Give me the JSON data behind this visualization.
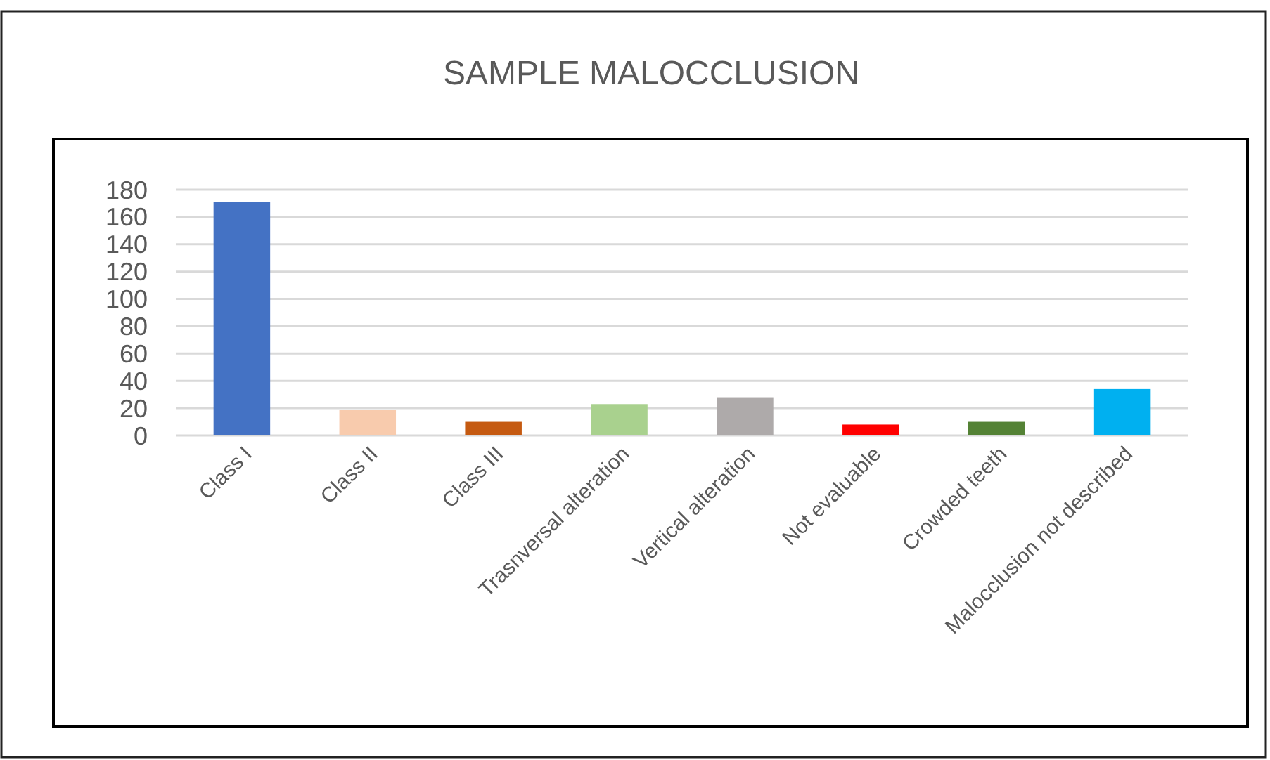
{
  "chart_data": {
    "type": "bar",
    "title": "SAMPLE MALOCCLUSION",
    "categories": [
      "Class I",
      "Class II",
      "Class III",
      "Trasnversal alteration",
      "Vertical alteration",
      "Not evaluable",
      "Crowded teeth",
      "Malocclusion not described"
    ],
    "values": [
      171,
      19,
      10,
      23,
      28,
      8,
      10,
      34
    ],
    "colors": [
      "#4472c4",
      "#f8cbad",
      "#c55a11",
      "#a9d18e",
      "#aeaaaa",
      "#ff0000",
      "#548235",
      "#00b0f0"
    ],
    "ylim": [
      0,
      180
    ],
    "yticks": [
      0,
      20,
      40,
      60,
      80,
      100,
      120,
      140,
      160,
      180
    ],
    "grid": true
  }
}
